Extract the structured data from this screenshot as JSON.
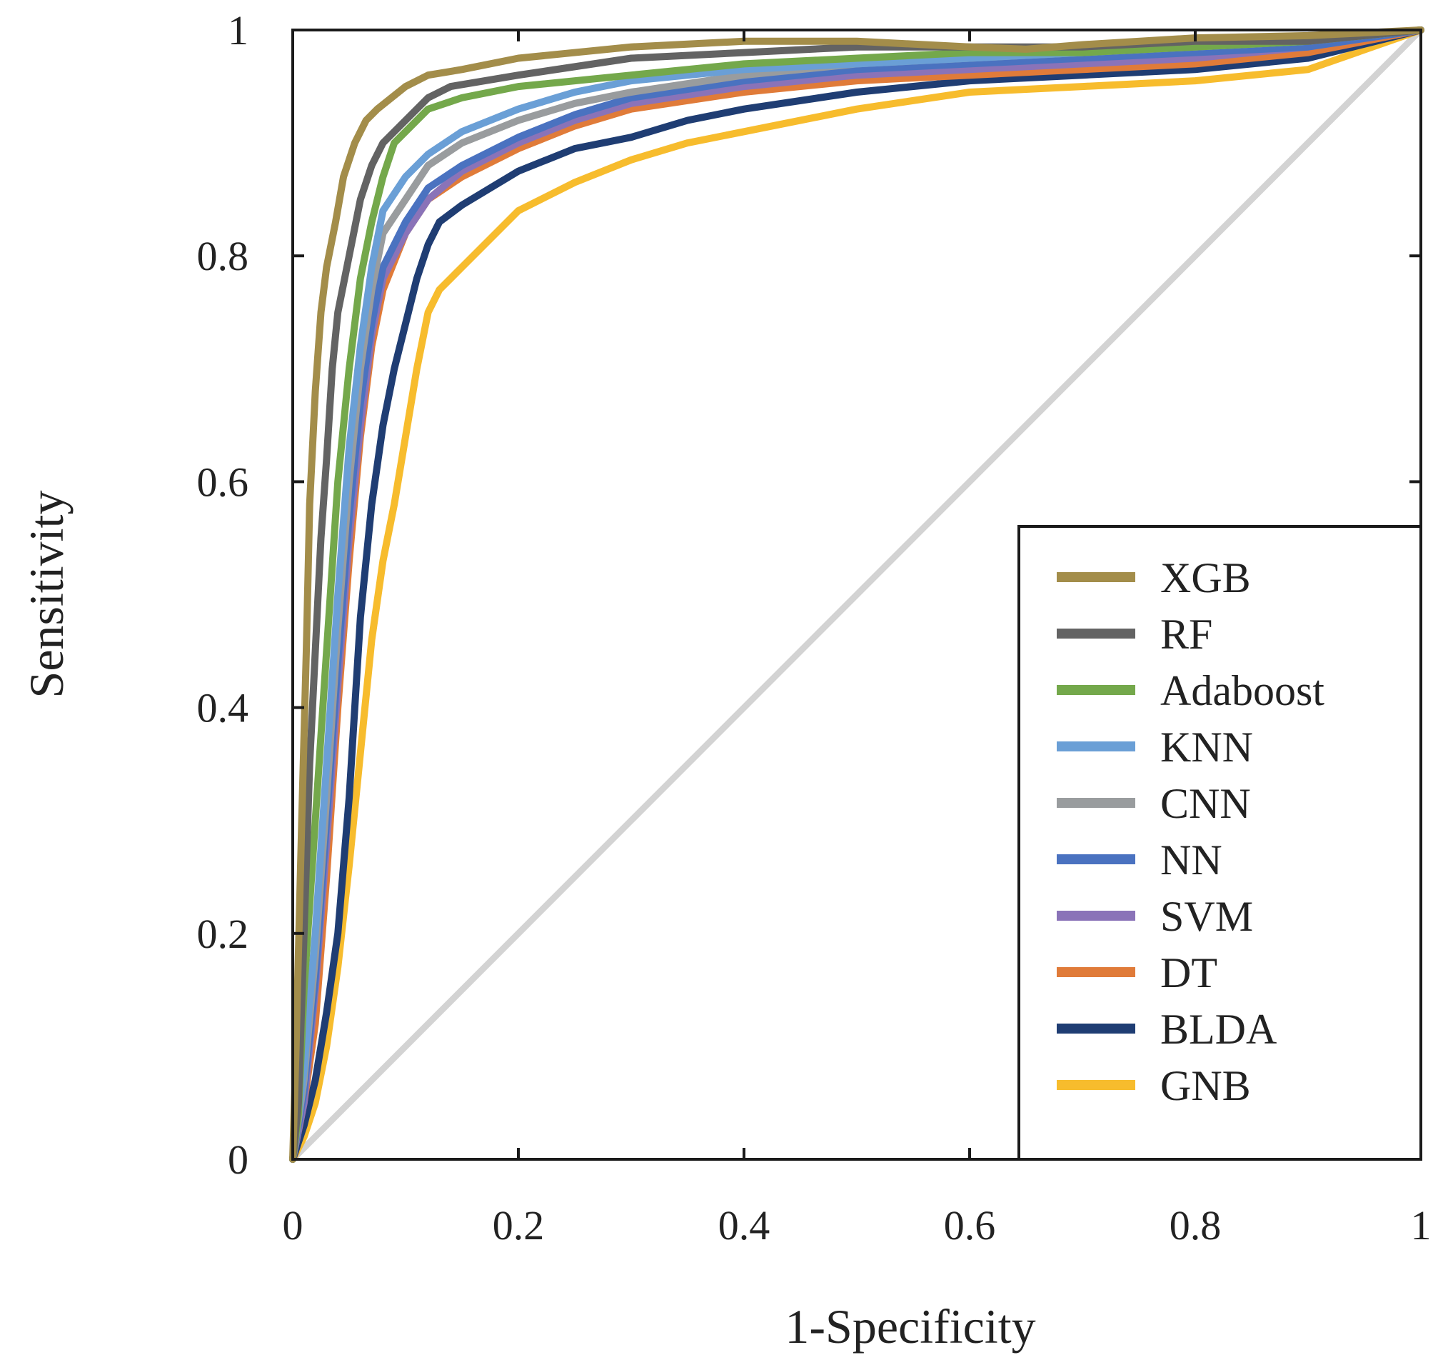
{
  "chart_data": {
    "type": "line",
    "title": "",
    "xlabel": "1-Specificity",
    "ylabel": "Sensitivity",
    "xlim": [
      0,
      1
    ],
    "ylim": [
      0,
      1
    ],
    "xticks": [
      0,
      0.2,
      0.4,
      0.6,
      0.8,
      1
    ],
    "yticks": [
      0,
      0.2,
      0.4,
      0.6,
      0.8,
      1
    ],
    "xtick_labels": [
      "0",
      "0.2",
      "0.4",
      "0.6",
      "0.8",
      "1"
    ],
    "ytick_labels": [
      "0",
      "0.2",
      "0.4",
      "0.6",
      "0.8",
      "1"
    ],
    "grid": false,
    "legend_position": "bottom-right",
    "reference_line": {
      "x": [
        0,
        1
      ],
      "y": [
        0,
        1
      ],
      "color": "#d3d3d3"
    },
    "series": [
      {
        "name": "XGB",
        "color": "#a38d4a",
        "x": [
          0,
          0.003,
          0.008,
          0.012,
          0.015,
          0.02,
          0.025,
          0.03,
          0.038,
          0.045,
          0.055,
          0.065,
          0.075,
          0.1,
          0.12,
          0.15,
          0.2,
          0.3,
          0.4,
          0.5,
          0.6,
          0.65,
          0.7,
          0.8,
          0.9,
          1
        ],
        "y": [
          0,
          0.1,
          0.3,
          0.45,
          0.58,
          0.68,
          0.75,
          0.79,
          0.83,
          0.87,
          0.9,
          0.92,
          0.93,
          0.95,
          0.96,
          0.965,
          0.975,
          0.985,
          0.99,
          0.99,
          0.985,
          0.983,
          0.987,
          0.993,
          0.995,
          1
        ]
      },
      {
        "name": "RF",
        "color": "#636363",
        "x": [
          0,
          0.005,
          0.01,
          0.015,
          0.02,
          0.025,
          0.03,
          0.035,
          0.04,
          0.05,
          0.06,
          0.07,
          0.08,
          0.1,
          0.12,
          0.14,
          0.2,
          0.3,
          0.4,
          0.5,
          0.6,
          0.7,
          0.8,
          0.9,
          1
        ],
        "y": [
          0,
          0.05,
          0.2,
          0.35,
          0.45,
          0.55,
          0.62,
          0.7,
          0.75,
          0.8,
          0.85,
          0.88,
          0.9,
          0.92,
          0.94,
          0.95,
          0.96,
          0.975,
          0.98,
          0.985,
          0.985,
          0.985,
          0.99,
          0.99,
          1
        ]
      },
      {
        "name": "Adaboost",
        "color": "#74a84b",
        "x": [
          0,
          0.005,
          0.01,
          0.02,
          0.03,
          0.04,
          0.05,
          0.06,
          0.07,
          0.08,
          0.09,
          0.1,
          0.12,
          0.15,
          0.2,
          0.3,
          0.4,
          0.5,
          0.6,
          0.7,
          0.8,
          0.9,
          1
        ],
        "y": [
          0,
          0.04,
          0.15,
          0.3,
          0.45,
          0.6,
          0.7,
          0.78,
          0.83,
          0.87,
          0.9,
          0.91,
          0.93,
          0.94,
          0.95,
          0.96,
          0.97,
          0.975,
          0.98,
          0.98,
          0.985,
          0.99,
          1
        ]
      },
      {
        "name": "KNN",
        "color": "#6a9fd6",
        "x": [
          0,
          0.01,
          0.02,
          0.03,
          0.04,
          0.05,
          0.06,
          0.07,
          0.08,
          0.1,
          0.12,
          0.15,
          0.2,
          0.25,
          0.3,
          0.4,
          0.5,
          0.6,
          0.7,
          0.8,
          0.9,
          1
        ],
        "y": [
          0,
          0.08,
          0.2,
          0.35,
          0.5,
          0.63,
          0.72,
          0.79,
          0.84,
          0.87,
          0.89,
          0.91,
          0.93,
          0.945,
          0.955,
          0.965,
          0.97,
          0.975,
          0.98,
          0.985,
          0.99,
          1
        ]
      },
      {
        "name": "CNN",
        "color": "#999c9e",
        "x": [
          0,
          0.01,
          0.02,
          0.03,
          0.04,
          0.05,
          0.06,
          0.07,
          0.08,
          0.1,
          0.12,
          0.15,
          0.2,
          0.25,
          0.3,
          0.4,
          0.5,
          0.6,
          0.7,
          0.8,
          0.9,
          1
        ],
        "y": [
          0,
          0.07,
          0.18,
          0.32,
          0.47,
          0.6,
          0.7,
          0.77,
          0.82,
          0.85,
          0.88,
          0.9,
          0.92,
          0.935,
          0.945,
          0.96,
          0.97,
          0.975,
          0.98,
          0.985,
          0.99,
          1
        ]
      },
      {
        "name": "NN",
        "color": "#4a72c0",
        "x": [
          0,
          0.01,
          0.02,
          0.03,
          0.04,
          0.05,
          0.06,
          0.07,
          0.08,
          0.1,
          0.12,
          0.15,
          0.2,
          0.25,
          0.3,
          0.4,
          0.5,
          0.6,
          0.7,
          0.8,
          0.9,
          1
        ],
        "y": [
          0,
          0.06,
          0.16,
          0.3,
          0.44,
          0.57,
          0.67,
          0.74,
          0.79,
          0.83,
          0.86,
          0.88,
          0.905,
          0.925,
          0.94,
          0.955,
          0.965,
          0.97,
          0.975,
          0.98,
          0.985,
          1
        ]
      },
      {
        "name": "SVM",
        "color": "#8a73b8",
        "x": [
          0,
          0.01,
          0.02,
          0.03,
          0.04,
          0.05,
          0.06,
          0.07,
          0.08,
          0.1,
          0.12,
          0.15,
          0.2,
          0.25,
          0.3,
          0.4,
          0.5,
          0.6,
          0.7,
          0.8,
          0.9,
          1
        ],
        "y": [
          0,
          0.05,
          0.15,
          0.28,
          0.42,
          0.55,
          0.65,
          0.73,
          0.78,
          0.82,
          0.85,
          0.875,
          0.9,
          0.92,
          0.935,
          0.95,
          0.96,
          0.965,
          0.97,
          0.975,
          0.985,
          1
        ]
      },
      {
        "name": "DT",
        "color": "#e07b39",
        "x": [
          0,
          0.01,
          0.02,
          0.03,
          0.04,
          0.05,
          0.06,
          0.07,
          0.08,
          0.1,
          0.12,
          0.15,
          0.2,
          0.25,
          0.3,
          0.4,
          0.5,
          0.6,
          0.7,
          0.8,
          0.9,
          1
        ],
        "y": [
          0,
          0.05,
          0.12,
          0.25,
          0.4,
          0.53,
          0.64,
          0.72,
          0.77,
          0.82,
          0.85,
          0.87,
          0.895,
          0.915,
          0.93,
          0.945,
          0.955,
          0.96,
          0.965,
          0.97,
          0.98,
          1
        ]
      },
      {
        "name": "BLDA",
        "color": "#1f3d73",
        "x": [
          0,
          0.01,
          0.02,
          0.03,
          0.04,
          0.05,
          0.06,
          0.07,
          0.08,
          0.09,
          0.1,
          0.11,
          0.12,
          0.13,
          0.15,
          0.2,
          0.25,
          0.3,
          0.35,
          0.4,
          0.5,
          0.6,
          0.7,
          0.8,
          0.9,
          1
        ],
        "y": [
          0,
          0.03,
          0.07,
          0.13,
          0.2,
          0.32,
          0.48,
          0.58,
          0.65,
          0.7,
          0.74,
          0.78,
          0.81,
          0.83,
          0.845,
          0.875,
          0.895,
          0.905,
          0.92,
          0.93,
          0.945,
          0.955,
          0.96,
          0.965,
          0.975,
          1
        ]
      },
      {
        "name": "GNB",
        "color": "#f7bc2d",
        "x": [
          0,
          0.01,
          0.02,
          0.03,
          0.04,
          0.05,
          0.06,
          0.07,
          0.08,
          0.09,
          0.1,
          0.11,
          0.12,
          0.13,
          0.15,
          0.2,
          0.25,
          0.3,
          0.35,
          0.4,
          0.5,
          0.6,
          0.7,
          0.8,
          0.9,
          1
        ],
        "y": [
          0,
          0.02,
          0.05,
          0.1,
          0.17,
          0.26,
          0.36,
          0.46,
          0.53,
          0.58,
          0.64,
          0.7,
          0.75,
          0.77,
          0.79,
          0.84,
          0.865,
          0.885,
          0.9,
          0.91,
          0.93,
          0.945,
          0.95,
          0.955,
          0.965,
          1
        ]
      }
    ]
  }
}
